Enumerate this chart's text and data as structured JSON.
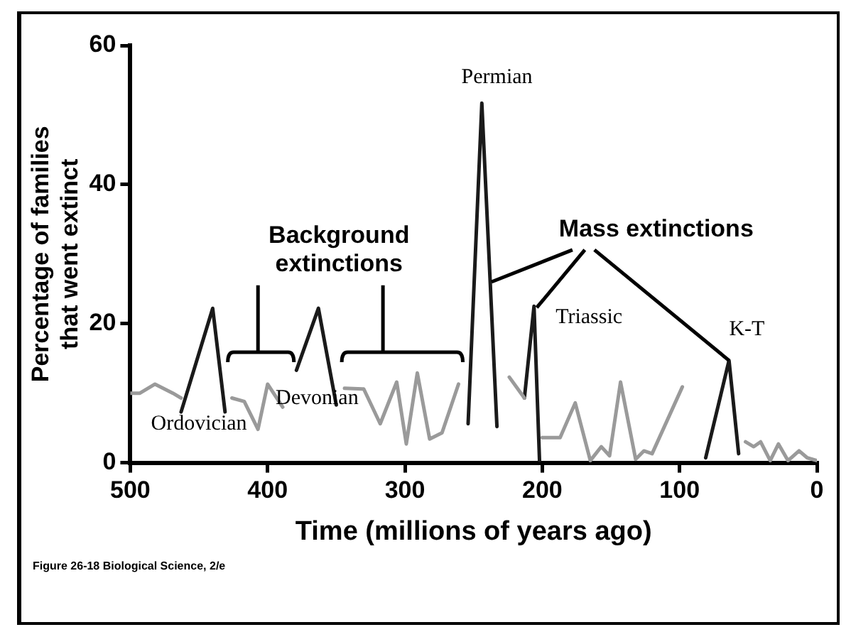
{
  "chart_data": {
    "type": "line",
    "xlabel": "Time (millions of years ago)",
    "ylabel": "Percentage of families that went extinct",
    "xlim": [
      500,
      0
    ],
    "xticks": [
      500,
      400,
      300,
      200,
      100,
      0
    ],
    "ylim": [
      0,
      60
    ],
    "yticks": [
      0,
      20,
      40,
      60
    ],
    "grid": false,
    "legend": false,
    "marker": "none",
    "series": [
      {
        "color": "#9a9a9a",
        "x": [
          500,
          493,
          482,
          469,
          463,
          450,
          426,
          417,
          407,
          400,
          389,
          370,
          344,
          330,
          318,
          306,
          299,
          291,
          282,
          273,
          261,
          240,
          224,
          213,
          205,
          200,
          187,
          176,
          165,
          157,
          151,
          143,
          132,
          126,
          120,
          98,
          70,
          52,
          46,
          41,
          34,
          28,
          21,
          13,
          7,
          0
        ],
        "values": [
          10,
          10,
          11.3,
          10,
          9.3,
          null,
          9.3,
          8.8,
          4.8,
          11.3,
          8,
          null,
          10.7,
          10.6,
          5.6,
          11.6,
          2.7,
          12.9,
          3.4,
          4.3,
          11.3,
          null,
          12.3,
          9.3,
          null,
          3.6,
          3.6,
          8.6,
          0.3,
          2.3,
          1,
          11.6,
          0.5,
          1.7,
          1.3,
          10.9,
          null,
          3,
          2.3,
          3,
          0.3,
          2.7,
          0.3,
          1.7,
          0.7,
          0.3
        ]
      },
      {
        "color": "#1a1a1a",
        "x": [
          463,
          440,
          431,
          405,
          379,
          363,
          350,
          300,
          254,
          244,
          233,
          220,
          213,
          206,
          202,
          150,
          81,
          64,
          57
        ],
        "values": [
          7.3,
          22.2,
          7.3,
          null,
          13.3,
          22.2,
          8.3,
          null,
          5.6,
          51.7,
          5.2,
          null,
          9.3,
          22.5,
          0.3,
          null,
          0.7,
          14.7,
          1.3
        ]
      }
    ],
    "annotations": [
      "Background extinctions",
      {
        "text": "Mass extinctions",
        "x": 64,
        "y": 14.7
      },
      "Ordovician",
      "Devonian",
      "Permian",
      "Triassic",
      "K-T",
      "Figure 26-18 Biological Science, 2/e"
    ]
  }
}
